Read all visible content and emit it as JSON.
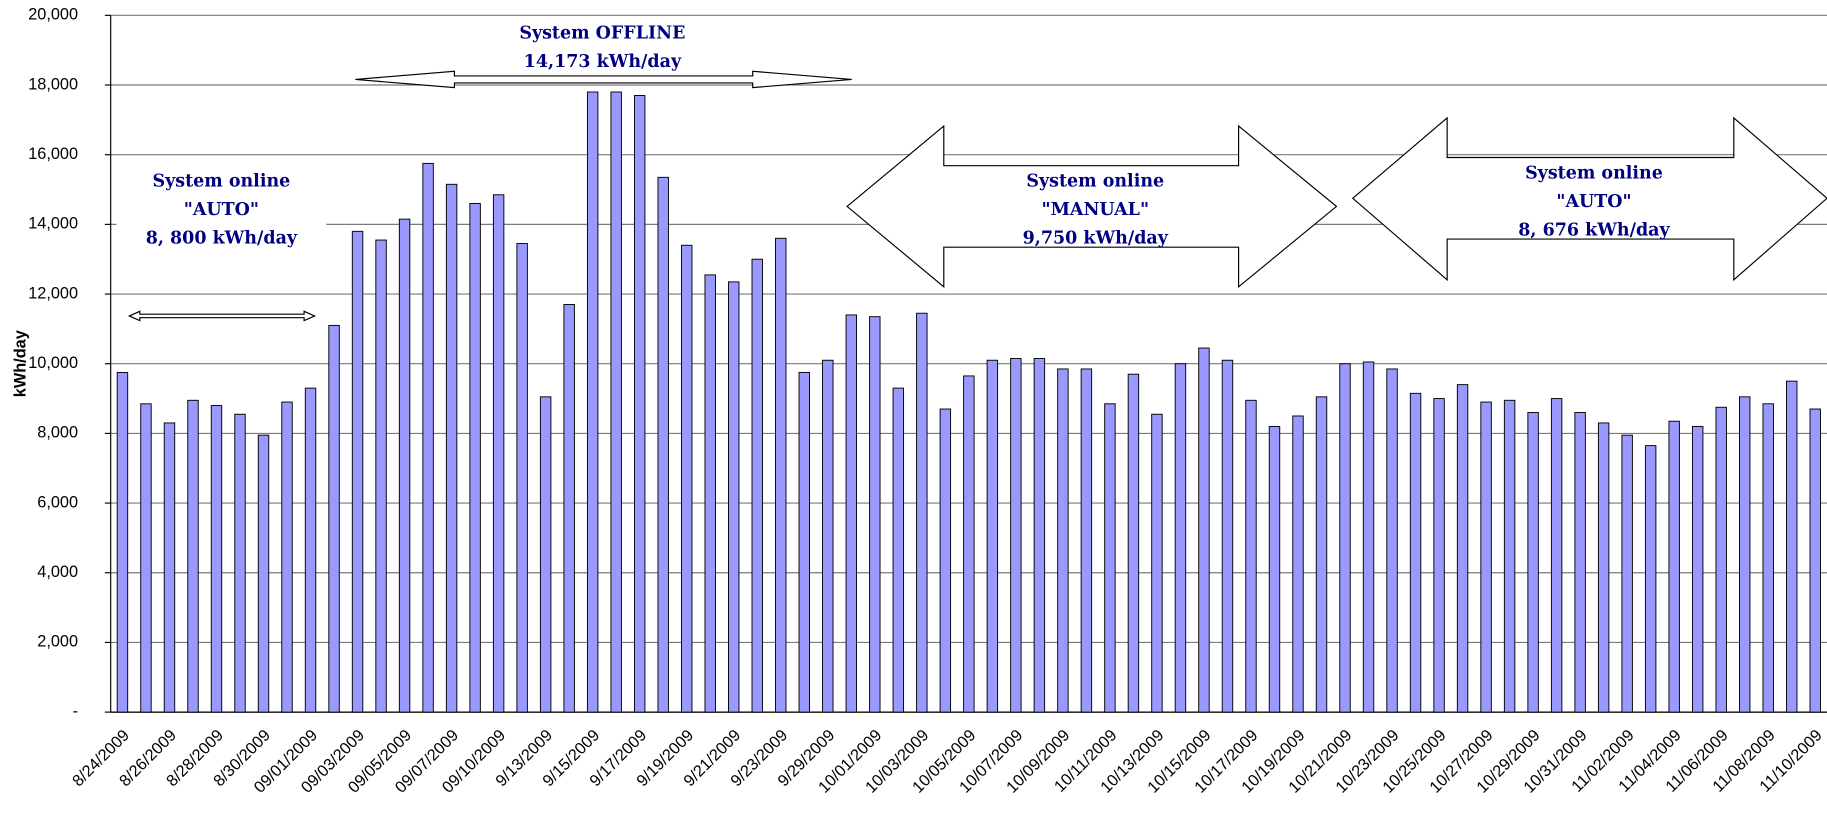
{
  "chart_data": {
    "type": "bar",
    "y_label": "kWh/day",
    "color": "#9999ff",
    "categories": [
      "8/24/2009",
      null,
      "8/26/2009",
      null,
      "8/28/2009",
      null,
      "8/30/2009",
      null,
      "09/01/2009",
      null,
      "09/03/2009",
      null,
      "09/05/2009",
      null,
      "09/07/2009",
      null,
      "09/10/2009",
      null,
      "9/13/2009",
      null,
      "9/15/2009",
      null,
      "9/17/2009",
      null,
      "9/19/2009",
      null,
      "9/21/2009",
      null,
      "9/23/2009",
      null,
      "9/29/2009",
      null,
      "10/01/2009",
      null,
      "10/03/2009",
      null,
      "10/05/2009",
      null,
      "10/07/2009",
      null,
      "10/09/2009",
      null,
      "10/11/2009",
      null,
      "10/13/2009",
      null,
      "10/15/2009",
      null,
      "10/17/2009",
      null,
      "10/19/2009",
      null,
      "10/21/2009",
      null,
      "10/23/2009",
      null,
      "10/25/2009",
      null,
      "10/27/2009",
      null,
      "10/29/2009",
      null,
      "10/31/2009",
      null,
      "11/02/2009",
      null,
      "11/04/2009",
      null,
      "11/06/2009",
      null,
      "11/08/2009",
      null,
      "11/10/2009"
    ],
    "values": [
      9750,
      8850,
      8300,
      8950,
      8800,
      8550,
      7950,
      8900,
      9300,
      11100,
      13800,
      13550,
      14150,
      15750,
      15150,
      14600,
      14850,
      13450,
      9050,
      11700,
      17800,
      17800,
      17700,
      15350,
      13400,
      12550,
      12350,
      13000,
      13600,
      9750,
      10100,
      11400,
      11350,
      9300,
      11450,
      8700,
      9650,
      10100,
      10150,
      10150,
      9850,
      9850,
      8850,
      9700,
      8550,
      10000,
      10450,
      10100,
      8950,
      8200,
      8500,
      9050,
      10000,
      10050,
      9850,
      9150,
      9000,
      9400,
      8900,
      8950,
      8600,
      9000,
      8600,
      8300,
      7950,
      7650,
      8350,
      8200,
      8750,
      9050,
      8850,
      9500,
      8700
    ],
    "ylim": [
      0,
      20000
    ],
    "yticks": [
      {
        "value": 0,
        "label": "-"
      },
      {
        "value": 2000,
        "label": "2,000"
      },
      {
        "value": 4000,
        "label": "4,000"
      },
      {
        "value": 6000,
        "label": "6,000"
      },
      {
        "value": 8000,
        "label": "8,000"
      },
      {
        "value": 10000,
        "label": "10,000"
      },
      {
        "value": 12000,
        "label": "12,000"
      },
      {
        "value": 14000,
        "label": "14,000"
      },
      {
        "value": 16000,
        "label": "16,000"
      },
      {
        "value": 18000,
        "label": "18,000"
      },
      {
        "value": 20000,
        "label": "20,000"
      }
    ],
    "grid": true,
    "annotations": [
      {
        "lines": [
          "System online",
          "\"AUTO\"",
          "8, 800 kWh/day"
        ]
      },
      {
        "lines": [
          "System OFFLINE",
          "14,173 kWh/day"
        ]
      },
      {
        "lines": [
          "System online",
          "\"MANUAL\"",
          "9,750 kWh/day"
        ]
      },
      {
        "lines": [
          "System online",
          "\"AUTO\"",
          "8, 676 kWh/day"
        ]
      }
    ]
  }
}
